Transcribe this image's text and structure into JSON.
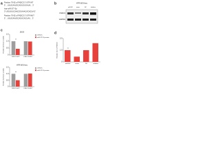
{
  "panel_labels": [
    "a",
    "b",
    "c",
    "d"
  ],
  "panel_a": {
    "lines": [
      "Position 79-92 of FNDC3 3' UTR WT",
      "5' ...UUUCAAUGCAGUGUGAUA... 3'",
      "hsa-miR-377-3p",
      "3' UGUUUUCAACGGAAACACACUA 5'",
      "Position 79-92 of FNDC3 3' UTR MUT",
      "5' ...UUUCAAUGCAGACACUAU... 3'"
    ]
  },
  "panel_b": {
    "header": "HTR-8/SVneo",
    "columns": [
      "miR-NC",
      "mimic",
      "NC",
      "inhibitor"
    ],
    "rows": [
      "FNDC3",
      "GAPDH"
    ]
  },
  "chart_data": [
    {
      "type": "bar",
      "title": "JEG3",
      "y_label": "Relative luciferase activity",
      "categories": [
        "FNDC3-WT",
        "FNDC3-MUT"
      ],
      "series": [
        {
          "name": "miR-NC",
          "color": "#9e9e9e",
          "values": [
            1,
            1
          ]
        },
        {
          "name": "miR-377-3p mimic",
          "color": "#e8413c",
          "values": [
            0.45,
            0.98
          ]
        }
      ],
      "ylim": [
        0,
        1.5
      ],
      "yticks": [
        0,
        0.5,
        {
          "value": 1,
          "label": "1.0"
        },
        1.5
      ],
      "annotations": [
        "**"
      ]
    },
    {
      "type": "bar",
      "y_label": "Relative level of FNDC3",
      "categories": [
        "miR-NC",
        "mimic",
        "NC",
        "inhibitor"
      ],
      "values": [
        1,
        0.45,
        1,
        1.6
      ],
      "color": "#e8413c",
      "ylim": [
        0,
        2
      ],
      "yticks": [
        0,
        {
          "value": 1,
          "label": "1.0"
        },
        {
          "value": 2,
          "label": "2.0"
        }
      ],
      "annotations": [
        "**"
      ]
    },
    {
      "type": "bar",
      "title": "HTR-8/SVneo",
      "y_label": "Relative luciferase activity",
      "categories": [
        "FNDC3-WT",
        "FNDC3-MUT"
      ],
      "series": [
        {
          "name": "miR-NC",
          "color": "#9e9e9e",
          "values": [
            1,
            1
          ]
        },
        {
          "name": "miR-377-3p mimic",
          "color": "#e8413c",
          "values": [
            0.5,
            1.02
          ]
        }
      ],
      "ylim": [
        0,
        1.5
      ],
      "yticks": [
        0,
        0.5,
        {
          "value": 1,
          "label": "1.0"
        },
        1.5
      ],
      "annotations": [
        "**"
      ]
    }
  ]
}
